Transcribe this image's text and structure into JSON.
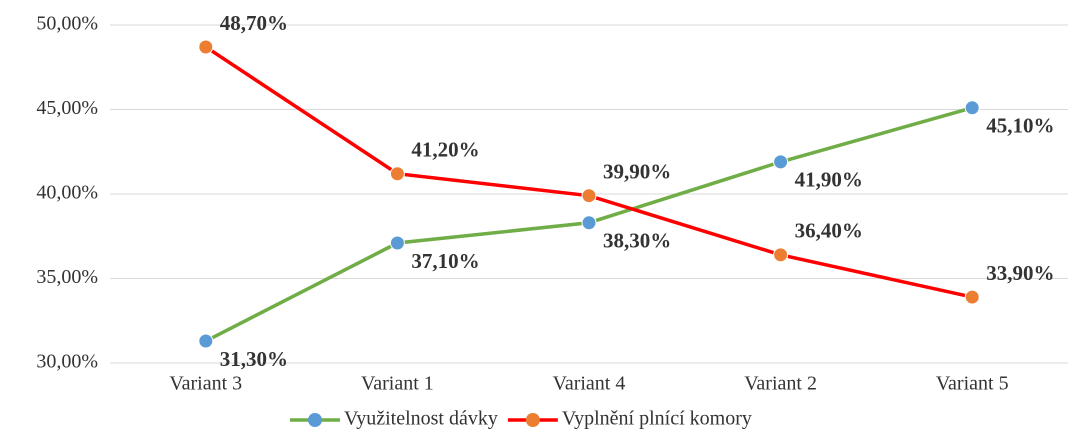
{
  "chart_data": {
    "type": "line",
    "categories": [
      "Variant 3",
      "Variant 1",
      "Variant 4",
      "Variant 2",
      "Variant 5"
    ],
    "series": [
      {
        "name": "Využitelnost dávky",
        "color": "#70ad47",
        "marker_color": "#5b9bd5",
        "values": [
          31.3,
          37.1,
          38.3,
          41.9,
          45.1
        ],
        "value_labels": [
          "31,30%",
          "37,10%",
          "38,30%",
          "41,90%",
          "45,10%"
        ]
      },
      {
        "name": "Vyplnění plnící komory",
        "color": "#ff0000",
        "marker_color": "#ed7d31",
        "values": [
          48.7,
          41.2,
          39.9,
          36.4,
          33.9
        ],
        "value_labels": [
          "48,70%",
          "41,20%",
          "39,90%",
          "36,40%",
          "33,90%"
        ]
      }
    ],
    "ylim": [
      30,
      50
    ],
    "yticks": [
      {
        "value": 30,
        "label": "30,00%"
      },
      {
        "value": 35,
        "label": "35,00%"
      },
      {
        "value": 40,
        "label": "40,00%"
      },
      {
        "value": 45,
        "label": "45,00%"
      },
      {
        "value": 50,
        "label": "50,00%"
      }
    ],
    "grid": true,
    "legend": "bottom"
  }
}
